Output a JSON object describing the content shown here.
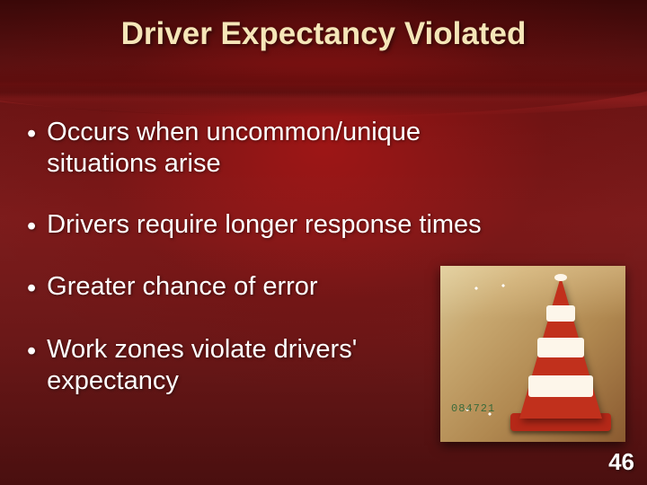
{
  "slide": {
    "title": "Driver Expectancy Violated",
    "bullets": [
      "Occurs when uncommon/unique situations arise",
      "Drivers require longer response times",
      "Greater chance of error",
      "Work zones violate drivers' expectancy"
    ],
    "page_number": "46",
    "figure": {
      "type": "infographic",
      "description": "traffic-cone",
      "cone_color": "#c1301c",
      "stripe_color": "#fdf6ea",
      "background_gradient": [
        "#d9c99a",
        "#c8a870",
        "#b08850",
        "#8a5a30"
      ],
      "digit_readout": "084721",
      "dot_color": "#ffffff"
    },
    "colors": {
      "title_color": "#f5e6b8",
      "body_text_color": "#ffffff",
      "page_number_color": "#ffffff",
      "background_dark": "#3a0808",
      "background_mid": "#7d1c1c"
    },
    "typography": {
      "title_fontsize": 35,
      "body_fontsize": 29,
      "page_number_fontsize": 26,
      "font_family": "Arial"
    }
  }
}
